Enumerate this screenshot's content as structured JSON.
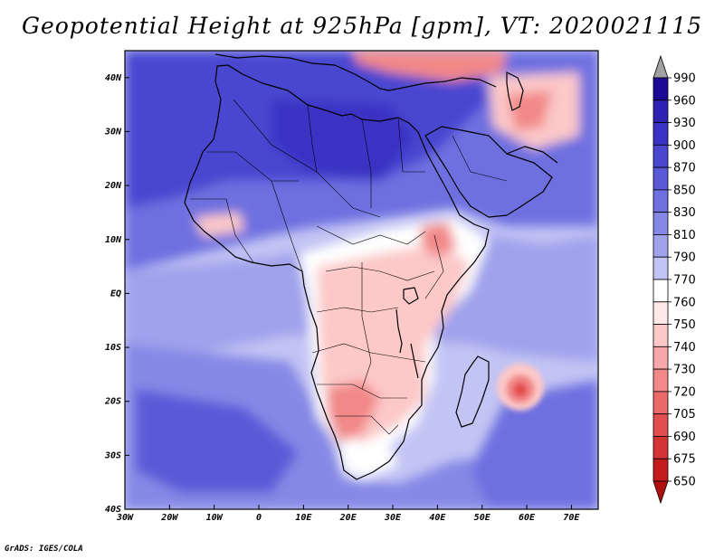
{
  "title": "Geopotential Height at 925hPa [gpm], VT: 2020021115",
  "credit": "GrADS: IGES/COLA",
  "map": {
    "lon_range": [
      -30,
      76
    ],
    "lat_range": [
      -40,
      45
    ],
    "lon_ticks": [
      {
        "lon": -30,
        "label": "30W"
      },
      {
        "lon": -20,
        "label": "20W"
      },
      {
        "lon": -10,
        "label": "10W"
      },
      {
        "lon": 0,
        "label": "0"
      },
      {
        "lon": 10,
        "label": "10E"
      },
      {
        "lon": 20,
        "label": "20E"
      },
      {
        "lon": 30,
        "label": "30E"
      },
      {
        "lon": 40,
        "label": "40E"
      },
      {
        "lon": 50,
        "label": "50E"
      },
      {
        "lon": 60,
        "label": "60E"
      },
      {
        "lon": 70,
        "label": "70E"
      }
    ],
    "lat_ticks": [
      {
        "lat": 40,
        "label": "40N"
      },
      {
        "lat": 30,
        "label": "30N"
      },
      {
        "lat": 20,
        "label": "20N"
      },
      {
        "lat": 10,
        "label": "10N"
      },
      {
        "lat": 0,
        "label": "EQ"
      },
      {
        "lat": -10,
        "label": "10S"
      },
      {
        "lat": -20,
        "label": "20S"
      },
      {
        "lat": -30,
        "label": "30S"
      },
      {
        "lat": -40,
        "label": "40S"
      }
    ]
  },
  "colorbar": {
    "labels": [
      "990",
      "960",
      "930",
      "900",
      "870",
      "850",
      "830",
      "810",
      "790",
      "770",
      "760",
      "750",
      "740",
      "730",
      "720",
      "705",
      "690",
      "675",
      "650"
    ],
    "colors": [
      "#a0a0a0",
      "#1c0a96",
      "#2e22b4",
      "#3a32c4",
      "#4a46d0",
      "#5a5ad8",
      "#6e70e0",
      "#8688e6",
      "#a0a2ec",
      "#c2c4f4",
      "#ffffff",
      "#ffe8e8",
      "#fcc8c8",
      "#f8a8a8",
      "#f28888",
      "#ec6a6a",
      "#e24e4e",
      "#d43434",
      "#c41c1c",
      "#b01010"
    ]
  },
  "colors": {
    "ocean_base": "#c2c4f4",
    "deep_blue": "#4a46d0",
    "mid_blue": "#6e70e0",
    "light_blue": "#a0a2ec",
    "land_low": "#fcc8c8",
    "land_lower": "#f28888",
    "white_zone": "#ffffff"
  }
}
